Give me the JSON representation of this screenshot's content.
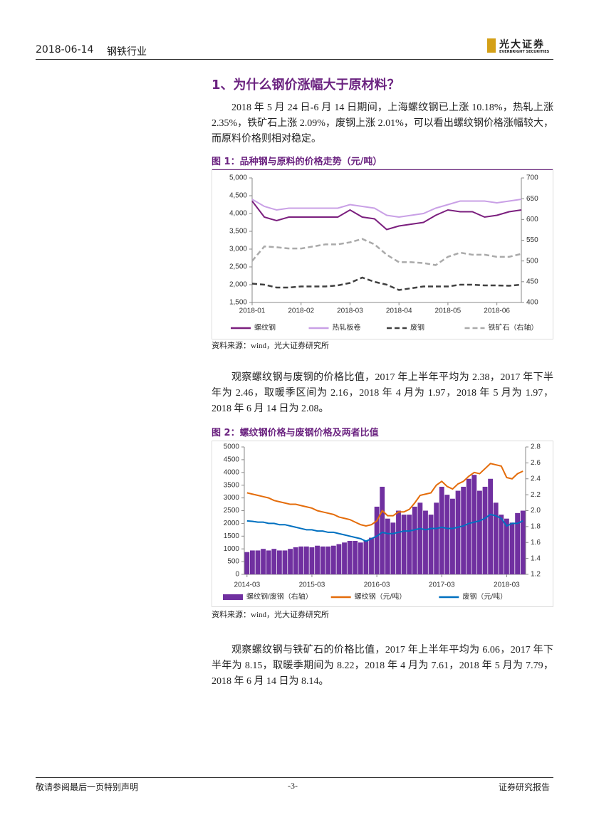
{
  "header": {
    "date": "2018-06-14",
    "industry": "钢铁行业",
    "logo_name": "光大证券",
    "logo_en": "EVERBRIGHT SECURITIES"
  },
  "section_title": "1、为什么钢价涨幅大于原材料？",
  "paragraphs": [
    "2018 年 5 月 24 日-6 月 14 日期间，上海螺纹钢已上涨 10.18%，热轧上涨 2.35%，铁矿石上涨 2.09%，废钢上涨 2.01%，可以看出螺纹钢价格涨幅较大，而原料价格则相对稳定。",
    "观察螺纹钢与废钢的价格比值，2017 年上半年平均为 2.38，2017 年下半年为 2.46，取暖季区间为 2.16，2018 年 4 月为 1.97，2018 年 5 月为 1.97，2018 年 6 月 14 日为 2.08。",
    "观察螺纹钢与铁矿石的价格比值，2017 年上半年平均为 6.06，2017 年下半年为 8.15，取暖季期间为 8.22，2018 年 4 月为 7.61，2018 年 5 月为 7.79， 2018 年 6 月 14 日为 8.14。"
  ],
  "figures": [
    {
      "caption": "图 1：品种钢与原料的价格走势（元/吨）",
      "source": "资料来源：wind，光大证券研究所"
    },
    {
      "caption": "图 2：螺纹钢价格与废钢价格及两者比值",
      "source": "资料来源：wind，光大证券研究所"
    }
  ],
  "footer": {
    "left": "敬请参阅最后一页特别声明",
    "center": "-3-",
    "right": "证券研究报告"
  },
  "chart_data": [
    {
      "type": "line",
      "categories": [
        "2018-01",
        null,
        null,
        null,
        "2018-02",
        null,
        null,
        null,
        "2018-03",
        null,
        null,
        null,
        "2018-04",
        null,
        null,
        null,
        "2018-05",
        null,
        null,
        null,
        "2018-06",
        null,
        null
      ],
      "series": [
        {
          "name": "螺纹钢",
          "color": "#7b1f7e",
          "values": [
            4350,
            3900,
            3800,
            3900,
            3900,
            3900,
            3900,
            3900,
            4100,
            3900,
            3850,
            3550,
            3650,
            3700,
            3750,
            3950,
            4100,
            4050,
            4050,
            3900,
            3950,
            4050,
            4100
          ]
        },
        {
          "name": "热轧板卷",
          "color": "#c9a0e6",
          "values": [
            4400,
            4200,
            4100,
            4150,
            4150,
            4150,
            4150,
            4150,
            4250,
            4200,
            4150,
            3950,
            3900,
            3950,
            4000,
            4150,
            4250,
            4350,
            4350,
            4350,
            4300,
            4350,
            4400
          ]
        },
        {
          "name": "废钢",
          "color": "#404040",
          "dash": true,
          "values": [
            2030,
            2000,
            1920,
            1920,
            1950,
            1950,
            1950,
            1980,
            2050,
            2200,
            2080,
            2000,
            1850,
            1900,
            1950,
            1950,
            1950,
            2000,
            2000,
            1980,
            1980,
            1970,
            2000
          ]
        },
        {
          "name": "铁矿石（右轴）",
          "color": "#aaaaaa",
          "dash": true,
          "axis": "y2",
          "values": [
            500,
            535,
            533,
            530,
            530,
            535,
            540,
            540,
            545,
            553,
            540,
            515,
            497,
            497,
            495,
            490,
            510,
            520,
            515,
            515,
            510,
            510,
            517
          ]
        }
      ],
      "ylim": [
        1500,
        5000
      ],
      "yticks": [
        {
          "value": 1500,
          "label": "1,500"
        },
        {
          "value": 2000,
          "label": "2,000"
        },
        {
          "value": 2500,
          "label": "2,500"
        },
        {
          "value": 3000,
          "label": "3,000"
        },
        {
          "value": 3500,
          "label": "3,500"
        },
        {
          "value": 4000,
          "label": "4,000"
        },
        {
          "value": 4500,
          "label": "4,500"
        },
        {
          "value": 5000,
          "label": "5,000"
        }
      ],
      "y2lim": [
        400,
        700
      ],
      "y2ticks": [
        400,
        450,
        500,
        550,
        600,
        650,
        700
      ]
    },
    {
      "type": "combo",
      "categories": [
        "2014-03",
        null,
        null,
        null,
        null,
        null,
        null,
        null,
        null,
        null,
        null,
        null,
        "2015-03",
        null,
        null,
        null,
        null,
        null,
        null,
        null,
        null,
        null,
        null,
        null,
        "2016-03",
        null,
        null,
        null,
        null,
        null,
        null,
        null,
        null,
        null,
        null,
        null,
        "2017-03",
        null,
        null,
        null,
        null,
        null,
        null,
        null,
        null,
        null,
        null,
        null,
        "2018-03",
        null,
        null,
        null
      ],
      "series": [
        {
          "name": "螺纹钢/废钢（右轴）",
          "type": "bar",
          "axis": "y2",
          "color": "#7030a0",
          "values": [
            1.48,
            1.5,
            1.5,
            1.52,
            1.5,
            1.52,
            1.5,
            1.5,
            1.52,
            1.54,
            1.55,
            1.55,
            1.54,
            1.56,
            1.55,
            1.55,
            1.56,
            1.58,
            1.6,
            1.62,
            1.62,
            1.6,
            1.62,
            1.66,
            2.05,
            2.3,
            1.9,
            1.85,
            2.0,
            1.95,
            1.95,
            2.05,
            2.1,
            2.0,
            1.95,
            2.1,
            2.3,
            2.2,
            2.15,
            2.25,
            2.3,
            2.4,
            2.45,
            2.25,
            2.3,
            2.4,
            2.1,
            1.95,
            1.9,
            1.85,
            1.97,
            2.0
          ]
        },
        {
          "name": "螺纹钢（元/吨）",
          "type": "line",
          "color": "#e46c0a",
          "values": [
            3200,
            3150,
            3100,
            3050,
            3000,
            2900,
            2850,
            2800,
            2750,
            2750,
            2700,
            2650,
            2600,
            2500,
            2450,
            2400,
            2350,
            2250,
            2200,
            2150,
            2050,
            1950,
            1900,
            1950,
            2100,
            2500,
            2300,
            2300,
            2450,
            2450,
            2550,
            2800,
            3100,
            3150,
            3200,
            3500,
            3650,
            3450,
            3350,
            3550,
            3650,
            3850,
            4000,
            3950,
            4150,
            4350,
            4300,
            4250,
            3800,
            3750,
            3950,
            4050
          ]
        },
        {
          "name": "废钢（元/吨）",
          "type": "line",
          "color": "#0070c0",
          "values": [
            2100,
            2080,
            2050,
            2050,
            2000,
            2000,
            1950,
            1950,
            1900,
            1850,
            1800,
            1750,
            1750,
            1700,
            1700,
            1650,
            1650,
            1600,
            1550,
            1500,
            1450,
            1400,
            1300,
            1400,
            1500,
            1650,
            1600,
            1600,
            1650,
            1700,
            1700,
            1750,
            1800,
            1750,
            1800,
            1800,
            1850,
            1800,
            1800,
            1850,
            1900,
            2000,
            2050,
            2100,
            2200,
            2350,
            2300,
            2200,
            1900,
            2000,
            2000,
            2100
          ]
        }
      ],
      "ylim": [
        0,
        5000
      ],
      "yticks": [
        0,
        500,
        1000,
        1500,
        2000,
        2500,
        3000,
        3500,
        4000,
        4500,
        5000
      ],
      "y2lim": [
        1.2,
        2.8
      ],
      "y2ticks": [
        1.2,
        1.4,
        1.6,
        1.8,
        {
          "value": 2,
          "label": "2.0"
        },
        2.2,
        2.4,
        2.6,
        2.8
      ]
    }
  ]
}
